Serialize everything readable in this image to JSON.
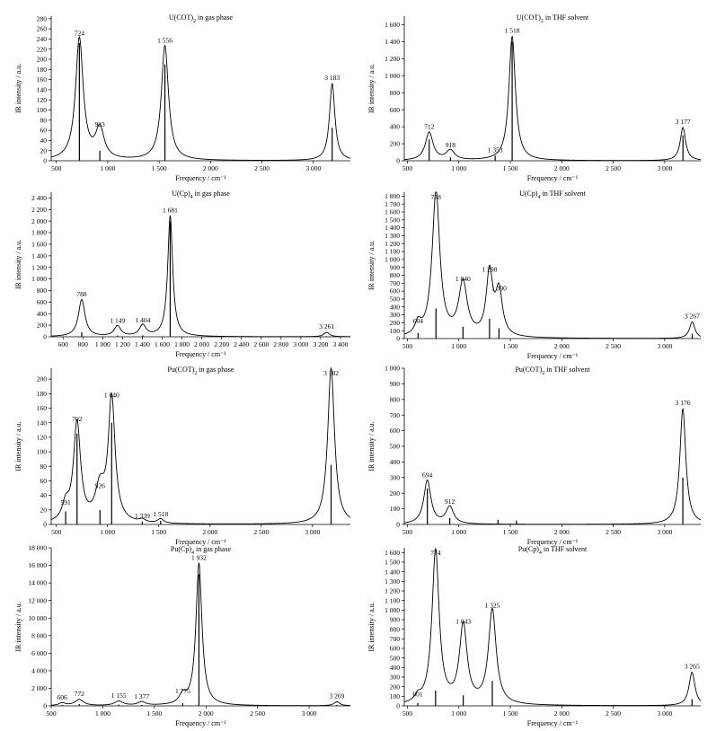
{
  "chart_data": [
    {
      "type": "line",
      "title_main": "U(COT)",
      "title_sub": "2",
      "title_rest": " in gas phase",
      "xlabel": "Frequency / cm⁻¹",
      "ylabel": "IR intensity / a.u.",
      "xlim": [
        450,
        3360
      ],
      "ylim": [
        0,
        285
      ],
      "xticks": [
        500,
        1000,
        1500,
        2000,
        2500,
        3000
      ],
      "xtick_labels": [
        "500",
        "1 000",
        "1 500",
        "2 000",
        "2 500",
        "3 000"
      ],
      "yticks": [
        0,
        20,
        40,
        60,
        80,
        100,
        120,
        140,
        160,
        180,
        200,
        220,
        240,
        260,
        280
      ],
      "ytick_labels": [
        "0",
        "20",
        "40",
        "60",
        "80",
        "100",
        "120",
        "140",
        "160",
        "180",
        "200",
        "220",
        "240",
        "260",
        "280"
      ],
      "peaks": [
        {
          "x": 724,
          "height": 240,
          "width": 45,
          "label": "724",
          "stick": 232
        },
        {
          "x": 923,
          "height": 60,
          "width": 50,
          "label": "923",
          "stick": 20
        },
        {
          "x": 1556,
          "height": 226,
          "width": 42,
          "label": "1 556",
          "stick": 190
        },
        {
          "x": 3183,
          "height": 152,
          "width": 32,
          "label": "3 183",
          "stick": 65
        }
      ]
    },
    {
      "type": "line",
      "title_main": "U(COT)",
      "title_sub": "2",
      "title_rest": " in THF solvent",
      "xlabel": "Frequency / cm⁻¹",
      "ylabel": "IR intensity / a.u.",
      "xlim": [
        470,
        3350
      ],
      "ylim": [
        0,
        1700
      ],
      "xticks": [
        500,
        1000,
        1500,
        2000,
        2500,
        3000
      ],
      "xtick_labels": [
        "500",
        "1 000",
        "1 500",
        "2 000",
        "2 500",
        "3 000"
      ],
      "yticks": [
        0,
        200,
        400,
        600,
        800,
        1000,
        1200,
        1400,
        1600
      ],
      "ytick_labels": [
        "0",
        "200",
        "400",
        "600",
        "800",
        "1 000",
        "1 200",
        "1 400",
        "1 600"
      ],
      "peaks": [
        {
          "x": 712,
          "height": 330,
          "width": 45,
          "label": "712",
          "stick": 250
        },
        {
          "x": 918,
          "height": 115,
          "width": 50,
          "label": "918",
          "stick": 40
        },
        {
          "x": 1353,
          "height": 0,
          "width": 30,
          "label": "1 353",
          "stick": 60
        },
        {
          "x": 1518,
          "height": 1460,
          "width": 38,
          "label": "1 518",
          "stick": 1400
        },
        {
          "x": 3177,
          "height": 390,
          "width": 32,
          "label": "3 177",
          "stick": 300
        }
      ]
    },
    {
      "type": "line",
      "title_main": "U(Cp)",
      "title_sub": "4",
      "title_rest": " in gas phase",
      "xlabel": "Frequency / cm⁻¹",
      "ylabel": "IR intensity / a.u.",
      "xlim": [
        480,
        3500
      ],
      "ylim": [
        0,
        2500
      ],
      "xticks": [
        600,
        800,
        1000,
        1200,
        1400,
        1600,
        1800,
        2000,
        2200,
        2400,
        2600,
        2800,
        3000,
        3200,
        3400
      ],
      "xtick_labels": [
        "600",
        "800",
        "1 000",
        "1 200",
        "1 400",
        "1 600",
        "1 800",
        "2 000",
        "2 200",
        "2 400",
        "2 600",
        "2 800",
        "3 000",
        "3 200",
        "3 400"
      ],
      "yticks": [
        0,
        200,
        400,
        600,
        800,
        1000,
        1200,
        1400,
        1600,
        1800,
        2000,
        2200,
        2400
      ],
      "ytick_labels": [
        "0",
        "200",
        "400",
        "600",
        "800",
        "1 000",
        "1 200",
        "1 400",
        "1 600",
        "1 800",
        "2 000",
        "2 200",
        "2 400"
      ],
      "peaks": [
        {
          "x": 788,
          "height": 640,
          "width": 40,
          "label": "788",
          "stick": 80
        },
        {
          "x": 1149,
          "height": 180,
          "width": 40,
          "label": "1 149",
          "stick": 20
        },
        {
          "x": 1404,
          "height": 190,
          "width": 40,
          "label": "1 404",
          "stick": 25
        },
        {
          "x": 1681,
          "height": 2090,
          "width": 30,
          "label": "1 681",
          "stick": 2000
        },
        {
          "x": 3261,
          "height": 75,
          "width": 35,
          "label": "3 261",
          "stick": 10
        }
      ]
    },
    {
      "type": "line",
      "title_main": "U(Cp)",
      "title_sub": "4",
      "title_rest": " in THF solvent",
      "xlabel": "Frequency / cm⁻¹",
      "ylabel": "IR intensity / a.u.",
      "xlim": [
        470,
        3350
      ],
      "ylim": [
        0,
        1850
      ],
      "xticks": [
        500,
        1000,
        1500,
        2000,
        2500,
        3000
      ],
      "xtick_labels": [
        "500",
        "1 000",
        "1 500",
        "2 000",
        "2 500",
        "3 000"
      ],
      "yticks": [
        0,
        100,
        200,
        300,
        400,
        500,
        600,
        700,
        800,
        900,
        1000,
        1100,
        1200,
        1300,
        1400,
        1500,
        1600,
        1700,
        1800
      ],
      "ytick_labels": [
        "0",
        "100",
        "200",
        "300",
        "400",
        "500",
        "600",
        "700",
        "800",
        "900",
        "1 000",
        "1 100",
        "1 200",
        "1 300",
        "1 400",
        "1 500",
        "1 600",
        "1 700",
        "1 800"
      ],
      "peaks": [
        {
          "x": 604,
          "height": 150,
          "width": 35,
          "label": "604",
          "stick": 70
        },
        {
          "x": 778,
          "height": 1840,
          "width": 45,
          "label": "778",
          "stick": 380
        },
        {
          "x": 1040,
          "height": 680,
          "width": 50,
          "label": "1 040",
          "stick": 150
        },
        {
          "x": 1298,
          "height": 800,
          "width": 38,
          "label": "1 298",
          "stick": 250
        },
        {
          "x": 1390,
          "height": 560,
          "width": 40,
          "label": "1 390",
          "stick": 130
        },
        {
          "x": 3267,
          "height": 210,
          "width": 32,
          "label": "3 267",
          "stick": 60
        }
      ]
    },
    {
      "type": "line",
      "title_main": "Pu(COT)",
      "title_sub": "2",
      "title_rest": " in gas phase",
      "xlabel": "Frequency / cm⁻¹",
      "ylabel": "IR intensity / a.u.",
      "xlim": [
        450,
        3370
      ],
      "ylim": [
        0,
        215
      ],
      "xticks": [
        500,
        1000,
        1500,
        2000,
        2500,
        3000
      ],
      "xtick_labels": [
        "500",
        "1 000",
        "1 500",
        "2 000",
        "2 500",
        "3 000"
      ],
      "yticks": [
        0,
        20,
        40,
        60,
        80,
        100,
        120,
        140,
        160,
        180,
        200
      ],
      "ytick_labels": [
        "0",
        "20",
        "40",
        "60",
        "80",
        "100",
        "120",
        "140",
        "160",
        "180",
        "200"
      ],
      "peaks": [
        {
          "x": 591,
          "height": 22,
          "width": 40,
          "label": "591",
          "stick": 18
        },
        {
          "x": 702,
          "height": 137,
          "width": 42,
          "label": "702",
          "stick": 125
        },
        {
          "x": 926,
          "height": 45,
          "width": 55,
          "label": "926",
          "stick": 20
        },
        {
          "x": 1040,
          "height": 170,
          "width": 40,
          "label": "1 040",
          "stick": 140
        },
        {
          "x": 1339,
          "height": 4,
          "width": 35,
          "label": "1 339",
          "stick": 4
        },
        {
          "x": 1518,
          "height": 6,
          "width": 35,
          "label": "1 518",
          "stick": 5
        },
        {
          "x": 3182,
          "height": 215,
          "width": 40,
          "label": "3 182",
          "stick": 82
        }
      ]
    },
    {
      "type": "line",
      "title_main": "Pu(COT)",
      "title_sub": "2",
      "title_rest": " in THF solvent",
      "xlabel": "Frequency / cm⁻¹",
      "ylabel": "IR intensity / a.u.",
      "xlim": [
        470,
        3350
      ],
      "ylim": [
        0,
        1000
      ],
      "xticks": [
        500,
        1000,
        1500,
        2000,
        2500,
        3000
      ],
      "xtick_labels": [
        "500",
        "1 000",
        "1 500",
        "2 000",
        "2 500",
        "3 000"
      ],
      "yticks": [
        0,
        100,
        200,
        300,
        400,
        500,
        600,
        700,
        800,
        900,
        1000
      ],
      "ytick_labels": [
        "0",
        "100",
        "200",
        "300",
        "400",
        "500",
        "600",
        "700",
        "800",
        "900",
        "1 000"
      ],
      "peaks": [
        {
          "x": 694,
          "height": 280,
          "width": 42,
          "label": "694",
          "stick": 230
        },
        {
          "x": 912,
          "height": 110,
          "width": 45,
          "label": "912",
          "stick": 40
        },
        {
          "x": 1380,
          "height": 0,
          "width": 30,
          "label": "",
          "stick": 30
        },
        {
          "x": 1560,
          "height": 0,
          "width": 30,
          "label": "",
          "stick": 25
        },
        {
          "x": 3176,
          "height": 740,
          "width": 35,
          "label": "3 176",
          "stick": 300
        }
      ]
    },
    {
      "type": "line",
      "title_main": "Pu(Cp)",
      "title_sub": "4",
      "title_rest": " in gas phase",
      "xlabel": "Frequency / cm⁻¹",
      "ylabel": "IR intensity / a.u.",
      "xlim": [
        500,
        3400
      ],
      "ylim": [
        0,
        18000
      ],
      "xticks": [
        500,
        1000,
        1500,
        2000,
        2500,
        3000
      ],
      "xtick_labels": [
        "500",
        "1 000",
        "1 500",
        "2 000",
        "2 500",
        "3 000"
      ],
      "yticks": [
        0,
        2000,
        4000,
        6000,
        8000,
        10000,
        12000,
        14000,
        16000,
        18000
      ],
      "ytick_labels": [
        "0",
        "2 000",
        "4 000",
        "6 000",
        "8 000",
        "10 000",
        "12 000",
        "14 000",
        "16 000",
        "18 000"
      ],
      "peaks": [
        {
          "x": 606,
          "height": 300,
          "width": 40,
          "label": "606",
          "stick": 100
        },
        {
          "x": 772,
          "height": 700,
          "width": 50,
          "label": "772",
          "stick": 200
        },
        {
          "x": 1155,
          "height": 500,
          "width": 50,
          "label": "1 155",
          "stick": 150
        },
        {
          "x": 1377,
          "height": 400,
          "width": 45,
          "label": "1 377",
          "stick": 100
        },
        {
          "x": 1775,
          "height": 1000,
          "width": 40,
          "label": "1 775",
          "stick": 300
        },
        {
          "x": 1932,
          "height": 16200,
          "width": 35,
          "label": "1 932",
          "stick": 15000
        },
        {
          "x": 3269,
          "height": 450,
          "width": 35,
          "label": "3 269",
          "stick": 120
        }
      ]
    },
    {
      "type": "line",
      "title_main": "Pu(Cp)",
      "title_sub": "4",
      "title_rest": " in THF solvent",
      "xlabel": "Frequency / cm⁻¹",
      "ylabel": "IR intensity / a.u.",
      "xlim": [
        470,
        3350
      ],
      "ylim": [
        0,
        1650
      ],
      "xticks": [
        500,
        1000,
        1500,
        2000,
        2500,
        3000
      ],
      "xtick_labels": [
        "500",
        "1 000",
        "1 500",
        "2 000",
        "2 500",
        "3 000"
      ],
      "yticks": [
        0,
        100,
        200,
        300,
        400,
        500,
        600,
        700,
        800,
        900,
        1000,
        1100,
        1200,
        1300,
        1400,
        1500,
        1600
      ],
      "ytick_labels": [
        "0",
        "100",
        "200",
        "300",
        "400",
        "500",
        "600",
        "700",
        "800",
        "900",
        "1 000",
        "1 100",
        "1 200",
        "1 300",
        "1 400",
        "1 500",
        "1 600"
      ],
      "peaks": [
        {
          "x": 601,
          "height": 60,
          "width": 35,
          "label": "601",
          "stick": 30
        },
        {
          "x": 774,
          "height": 1610,
          "width": 42,
          "label": "774",
          "stick": 160
        },
        {
          "x": 1043,
          "height": 820,
          "width": 45,
          "label": "1 043",
          "stick": 110
        },
        {
          "x": 1325,
          "height": 990,
          "width": 45,
          "label": "1 325",
          "stick": 260
        },
        {
          "x": 3265,
          "height": 350,
          "width": 35,
          "label": "3 265",
          "stick": 70
        }
      ]
    }
  ]
}
